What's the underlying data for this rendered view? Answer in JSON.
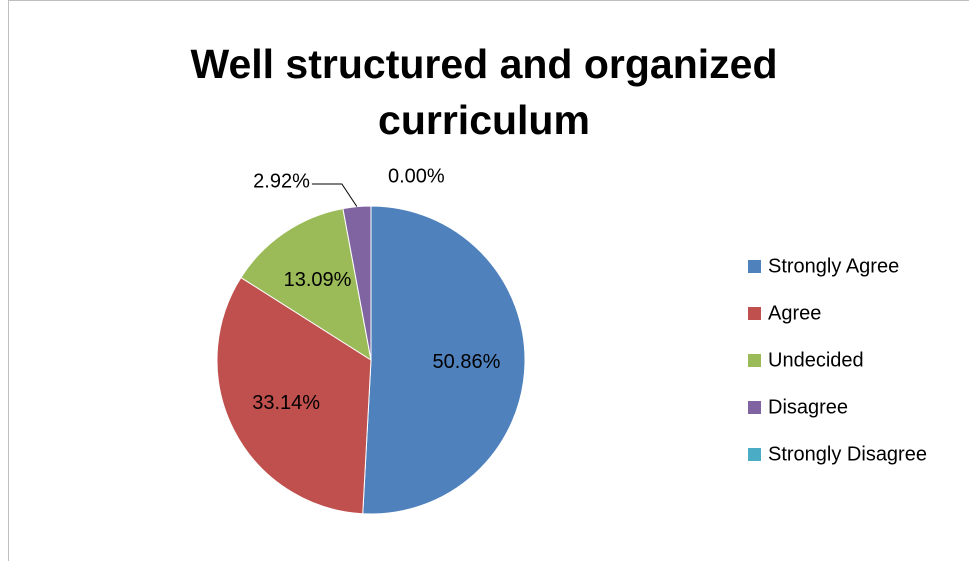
{
  "chart_data": {
    "type": "pie",
    "title": "Well structured and organized curriculum",
    "categories": [
      "Strongly Agree",
      "Agree",
      "Undecided",
      "Disagree",
      "Strongly Disagree"
    ],
    "values": [
      50.86,
      33.14,
      13.09,
      2.92,
      0.0
    ],
    "value_labels": [
      "50.86%",
      "33.14%",
      "13.09%",
      "2.92%",
      "0.00%"
    ],
    "colors": [
      "#4f81bd",
      "#c0504d",
      "#9bbb59",
      "#8064a2",
      "#4bacc6"
    ],
    "legend": "right"
  }
}
